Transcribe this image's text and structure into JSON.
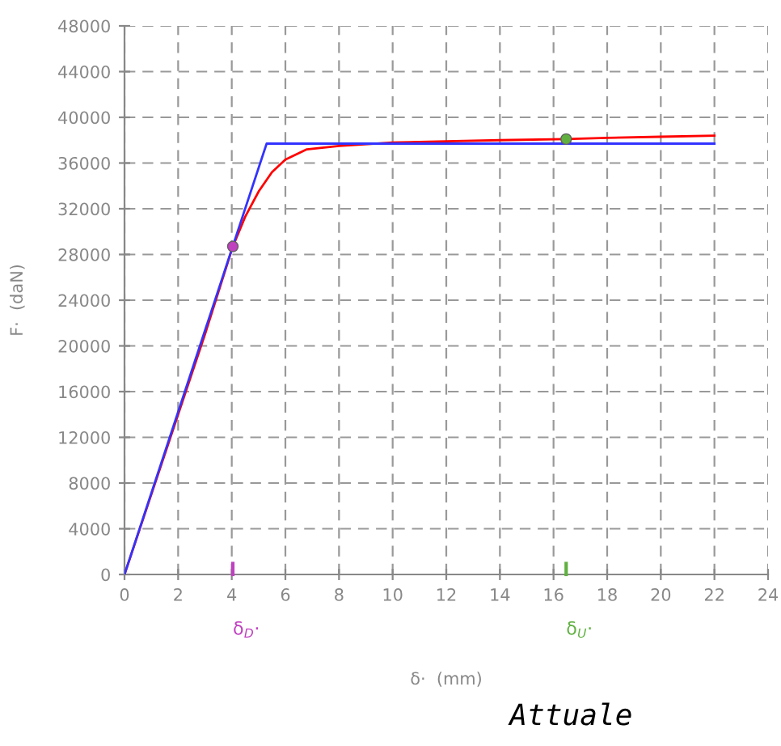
{
  "chart_data": {
    "type": "line",
    "xlabel": "δ·  (mm)",
    "ylabel": "F·  (daN)",
    "xlim": [
      0,
      24
    ],
    "ylim": [
      0,
      48000
    ],
    "xticks": [
      0,
      2,
      4,
      6,
      8,
      10,
      12,
      14,
      16,
      18,
      20,
      22,
      24
    ],
    "yticks": [
      0,
      4000,
      8000,
      12000,
      16000,
      20000,
      24000,
      28000,
      32000,
      36000,
      40000,
      44000,
      48000
    ],
    "grid": true,
    "marker": "none",
    "line_style": "solid",
    "series": [
      {
        "color": "#ff0000",
        "x": [
          0,
          1,
          2,
          3,
          4.04,
          4.5,
          5,
          5.5,
          6,
          6.8,
          8,
          10,
          12,
          14,
          16.47,
          18,
          20,
          22
        ],
        "values": [
          0,
          7000,
          14000,
          21000,
          28700,
          31300,
          33500,
          35200,
          36300,
          37200,
          37500,
          37800,
          37900,
          38000,
          38100,
          38200,
          38300,
          38400
        ]
      },
      {
        "color": "#3333ff",
        "x": [
          0,
          5.3,
          22
        ],
        "values": [
          0,
          37700,
          37700
        ]
      },
      {
        "type": "scatter",
        "marker": "circle",
        "color": "#c040c0",
        "x": [
          4.04
        ],
        "values": [
          28700
        ]
      },
      {
        "type": "scatter",
        "marker": "circle",
        "color": "#60b040",
        "x": [
          16.47
        ],
        "values": [
          38100
        ]
      }
    ],
    "annotations": [
      "δ$_{D}$·",
      "δ$_{U}$·",
      "Attuale"
    ]
  }
}
